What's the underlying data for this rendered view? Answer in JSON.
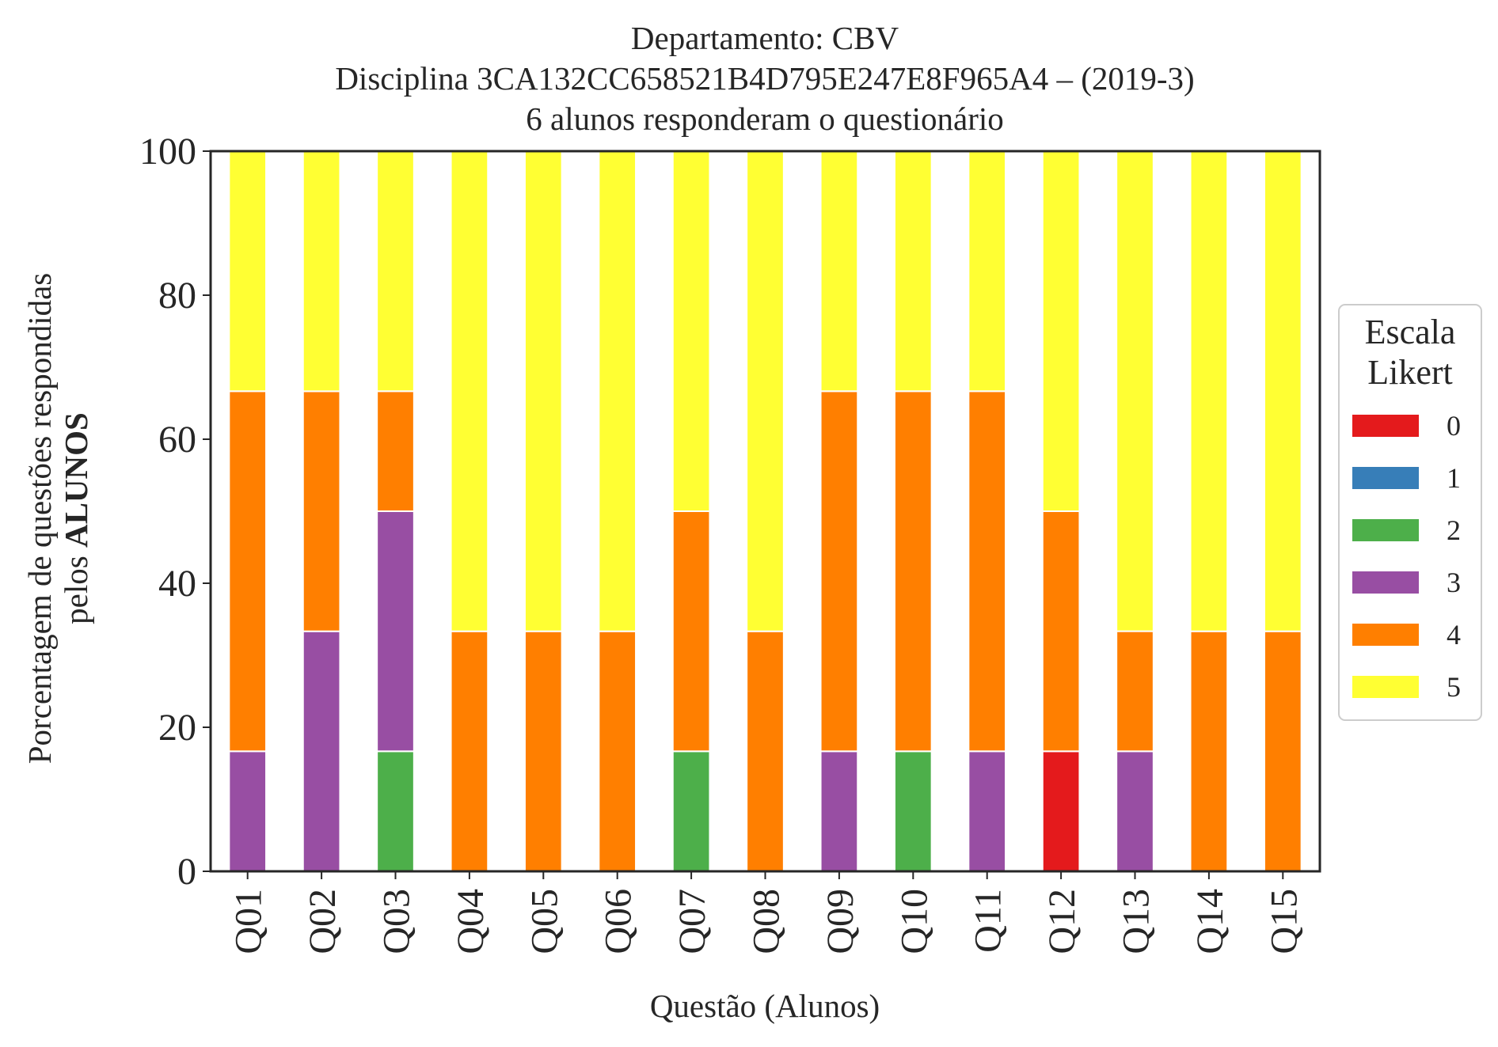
{
  "chart_data": {
    "type": "bar",
    "stacked": true,
    "title": "Departamento: CBV",
    "subtitle_lines": [
      "Disciplina 3CA132CC658521B4D795E247E8F965A4 – (2019-3)",
      "6 alunos responderam o questionário"
    ],
    "xlabel": "Questão (Alunos)",
    "ylabel_line1": "Porcentagem de questões respondidas",
    "ylabel_line2_prefix": "pelos",
    "ylabel_line2_bold": "ALUNOS",
    "ylim": [
      0,
      100
    ],
    "yticks": [
      "0",
      "20",
      "40",
      "60",
      "80",
      "100"
    ],
    "grid": false,
    "legend": {
      "title_line1": "Escala",
      "title_line2": "Likert",
      "placement": "right"
    },
    "categories": [
      "Q01",
      "Q02",
      "Q03",
      "Q04",
      "Q05",
      "Q06",
      "Q07",
      "Q08",
      "Q09",
      "Q10",
      "Q11",
      "Q12",
      "Q13",
      "Q14",
      "Q15"
    ],
    "series": [
      {
        "name": "0",
        "color": "#e41a1c",
        "values": [
          0,
          0,
          0,
          0,
          0,
          0,
          0,
          0,
          0,
          0,
          0,
          16.67,
          0,
          0,
          0
        ]
      },
      {
        "name": "1",
        "color": "#377eb8",
        "values": [
          0,
          0,
          0,
          0,
          0,
          0,
          0,
          0,
          0,
          0,
          0,
          0,
          0,
          0,
          0
        ]
      },
      {
        "name": "2",
        "color": "#4daf4a",
        "values": [
          0,
          0,
          16.67,
          0,
          0,
          0,
          16.67,
          0,
          0,
          16.67,
          0,
          0,
          0,
          0,
          0
        ]
      },
      {
        "name": "3",
        "color": "#984ea3",
        "values": [
          16.67,
          33.33,
          33.33,
          0,
          0,
          0,
          0,
          0,
          16.67,
          0,
          16.67,
          0,
          16.67,
          0,
          0
        ]
      },
      {
        "name": "4",
        "color": "#ff7f00",
        "values": [
          50,
          33.33,
          16.67,
          33.33,
          33.33,
          33.33,
          33.33,
          33.33,
          50,
          50,
          50,
          33.33,
          16.67,
          33.33,
          33.33
        ]
      },
      {
        "name": "5",
        "color": "#ffff33",
        "values": [
          33.33,
          33.33,
          33.33,
          66.67,
          66.67,
          66.67,
          50,
          66.67,
          33.33,
          33.33,
          33.33,
          50,
          66.67,
          66.67,
          66.67
        ]
      }
    ]
  }
}
